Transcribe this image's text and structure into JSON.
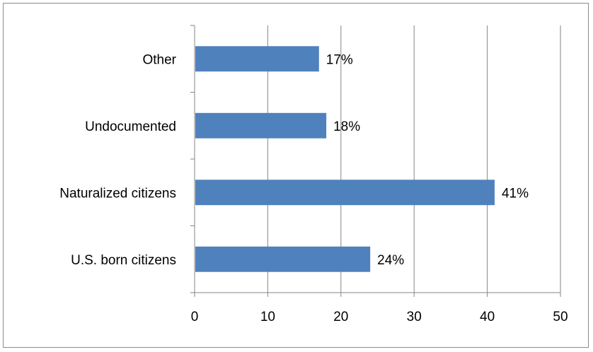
{
  "chart_data": {
    "type": "bar",
    "orientation": "horizontal",
    "categories": [
      "Other",
      "Undocumented",
      "Naturalized citizens",
      "U.S. born citizens"
    ],
    "values": [
      17,
      18,
      41,
      24
    ],
    "data_labels": [
      "17%",
      "18%",
      "41%",
      "24%"
    ],
    "xlim": [
      0,
      50
    ],
    "x_ticks": [
      0,
      10,
      20,
      30,
      40,
      50
    ],
    "x_tick_labels": [
      "0",
      "10",
      "20",
      "30",
      "40",
      "50"
    ],
    "grid": "vertical",
    "legend": "none",
    "bar_color": "#4f81bd",
    "grid_color": "#868686",
    "axis_color": "#868686"
  }
}
